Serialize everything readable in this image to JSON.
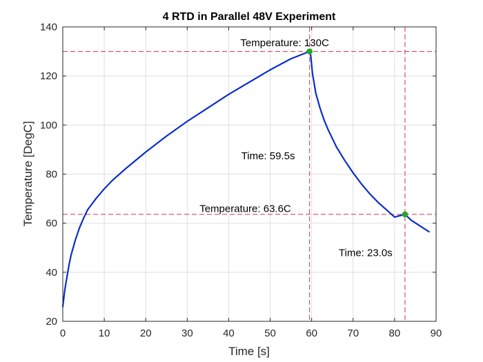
{
  "chart_data": {
    "type": "line",
    "title": "4 RTD in Parallel 48V Experiment",
    "xlabel": "Time [s]",
    "ylabel": "Temperature [DegC]",
    "xlim": [
      0,
      90
    ],
    "ylim": [
      20,
      140
    ],
    "xticks": [
      "0",
      "10",
      "20",
      "30",
      "40",
      "50",
      "60",
      "70",
      "80",
      "90"
    ],
    "yticks": [
      "20",
      "40",
      "60",
      "80",
      "100",
      "120",
      "140"
    ],
    "grid": true,
    "series": [
      {
        "color": "#0a2ccc",
        "x": [
          0,
          0.5,
          1,
          1.5,
          2,
          3,
          4,
          5,
          6,
          8,
          10,
          12,
          15,
          20,
          25,
          30,
          35,
          40,
          45,
          50,
          55,
          58,
          59.5,
          59.8,
          60.2,
          61,
          62,
          63,
          64,
          66,
          68,
          70,
          72,
          74,
          76,
          78,
          80,
          82.5,
          84,
          86,
          88.3
        ],
        "y": [
          26,
          33,
          38,
          43,
          47,
          53,
          58,
          62,
          65.5,
          70,
          74,
          77.5,
          82,
          89,
          95.5,
          101.5,
          107,
          112.5,
          117.5,
          122.5,
          127,
          129,
          130,
          128,
          121,
          113,
          107,
          102,
          98,
          91,
          85.5,
          80.5,
          76,
          72,
          68.5,
          65.5,
          62.5,
          63.6,
          61.2,
          59,
          56.5
        ]
      }
    ],
    "markers": [
      {
        "x": 59.5,
        "y": 130,
        "color": "#22aa22"
      },
      {
        "x": 82.5,
        "y": 63.6,
        "color": "#22aa22"
      }
    ],
    "reference_lines": {
      "color": "#c8324b",
      "vertical": [
        59.5,
        82.5
      ],
      "horizontal": [
        130,
        63.6
      ]
    },
    "annotations": [
      {
        "text": "Temperature: 130C",
        "x": 53.5,
        "y": 133.5
      },
      {
        "text": "Time: 59.5s",
        "x": 49.5,
        "y": 87.5
      },
      {
        "text": "Temperature: 63.6C",
        "x": 44,
        "y": 66
      },
      {
        "text": "Time: 23.0s",
        "x": 73,
        "y": 48
      }
    ]
  }
}
